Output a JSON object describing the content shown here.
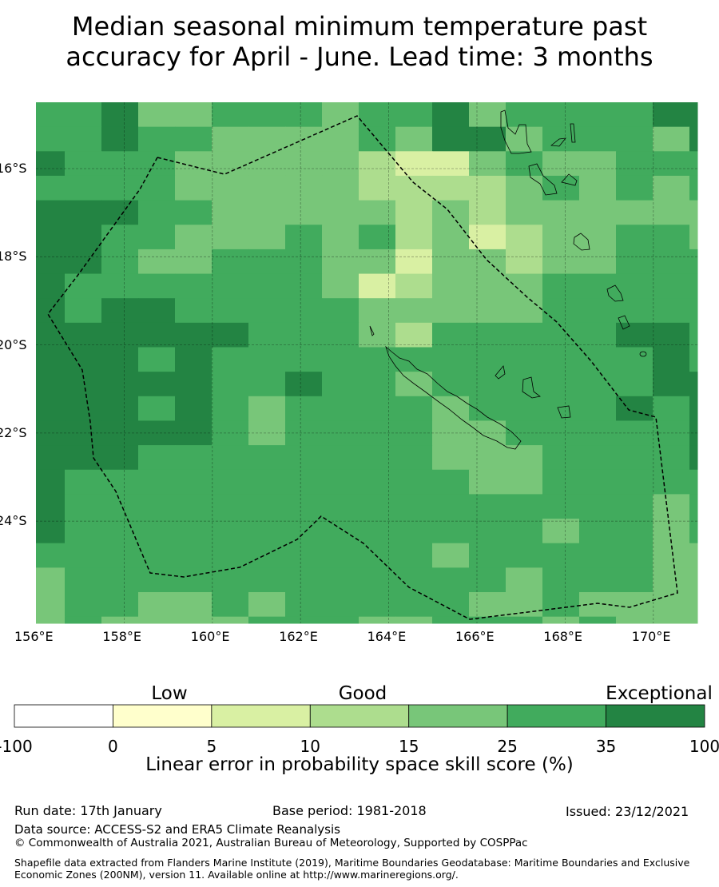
{
  "title_line1": "Median seasonal minimum temperature past",
  "title_line2": "accuracy for April - June. Lead time: 3 months",
  "map": {
    "lon_ticks": [
      "156°E",
      "158°E",
      "160°E",
      "162°E",
      "164°E",
      "166°E",
      "168°E",
      "170°E"
    ],
    "lat_ticks": [
      "16°S",
      "18°S",
      "20°S",
      "22°S",
      "24°S"
    ],
    "skill_category_grid": [
      "5564455545564555566",
      "5565544445466455546",
      "6555444443224544555",
      "5555444443333454545",
      "6665544444343444444",
      "6655444545342344554",
      "6654455544244344555",
      "6555555542344455555",
      "6566555554444455555",
      "6666665554355555665",
      "6665655555555555565",
      "6666655655455555566",
      "6665654555545555656",
      "6666654555544555556",
      "6665555555544455556",
      "6555555555554455555",
      "6555555555555555545",
      "6555555555555545545",
      "5555555555545555544",
      "4555555555555455544",
      "4554454555554454444",
      "4544445554455545444"
    ]
  },
  "colorbar": {
    "colors": [
      "#ffffff",
      "#ffffcc",
      "#d9f0a3",
      "#addd8e",
      "#78c679",
      "#41ab5d",
      "#238443"
    ],
    "boundaries": [
      "-100",
      "0",
      "5",
      "10",
      "15",
      "25",
      "35",
      "100"
    ],
    "categories": [
      "Low",
      "Good",
      "Exceptional"
    ],
    "title": "Linear error in probability space skill score (%)"
  },
  "footer": {
    "run_date": "Run date: 17th January",
    "base_period": "Base period: 1981-2018",
    "issued": "Issued: 23/12/2021",
    "data_source": "Data source: ACCESS-S2 and ERA5 Climate Reanalysis",
    "copyright": "© Commonwealth of Australia 2021, Australian Bureau of Meteorology, Supported by COSPPac",
    "shapefile": "Shapefile data extracted from Flanders Marine Institute (2019), Maritime Boundaries Geodatabase: Maritime Boundaries and Exclusive Economic Zones (200NM), version 11. Available online at http://www.marineregions.org/."
  }
}
